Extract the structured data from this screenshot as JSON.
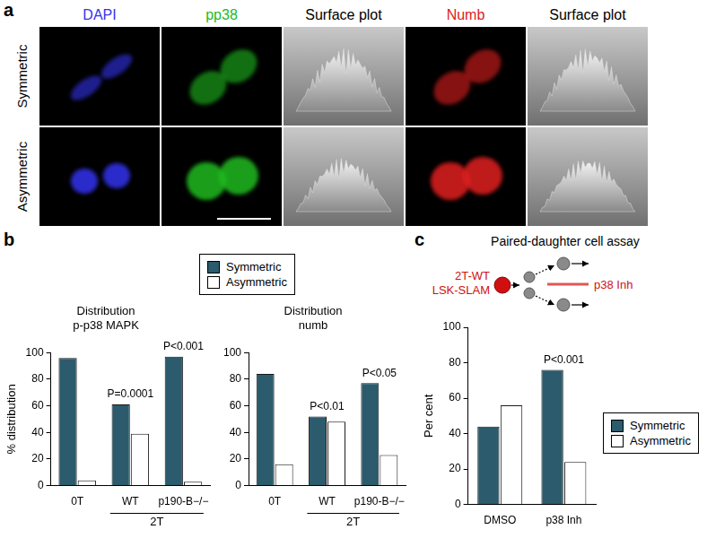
{
  "panel_labels": [
    "a",
    "b",
    "c"
  ],
  "micrographs": {
    "columns": [
      {
        "label": "DAPI",
        "color": "#3333ee"
      },
      {
        "label": "pp38",
        "color": "#22bb22"
      },
      {
        "label": "Surface plot",
        "color": "#000000"
      },
      {
        "label": "Numb",
        "color": "#e0201c"
      },
      {
        "label": "Surface plot",
        "color": "#000000"
      }
    ],
    "rows": [
      "Symmetric",
      "Asymmetric"
    ]
  },
  "assay_diagram": {
    "title": "Paired-daughter cell assay",
    "cell_label": [
      "2T-WT",
      "LSK-SLAM"
    ],
    "treatment_label": "p38 Inh"
  },
  "chart_data": [
    {
      "type": "bar",
      "title": [
        "Distribution",
        "p-p38 MAPK"
      ],
      "y_label": "% distribution",
      "categories": [
        "0T",
        "WT",
        "p190-B−/−"
      ],
      "category_groups": [
        {
          "label": "2T",
          "categories": [
            "WT",
            "p190-B−/−"
          ]
        }
      ],
      "series": [
        {
          "name": "Symmetric",
          "color": "#2b5b6c",
          "values": [
            96,
            61,
            97
          ]
        },
        {
          "name": "Asymmetric",
          "color": "#ffffff",
          "values": [
            4,
            39,
            3
          ]
        }
      ],
      "ylim": [
        0,
        100
      ],
      "yticks": [
        0,
        20,
        40,
        60,
        80,
        100
      ],
      "grid": false,
      "legend": "top",
      "annotations": [
        {
          "category": "WT",
          "text": "P=0.0001"
        },
        {
          "category": "p190-B−/−",
          "text": "P<0.001"
        }
      ]
    },
    {
      "type": "bar",
      "title": [
        "Distribution",
        "numb"
      ],
      "categories": [
        "0T",
        "WT",
        "p190-B−/−"
      ],
      "category_groups": [
        {
          "label": "2T",
          "categories": [
            "WT",
            "p190-B−/−"
          ]
        }
      ],
      "series": [
        {
          "name": "Symmetric",
          "color": "#2b5b6c",
          "values": [
            84,
            52,
            77
          ]
        },
        {
          "name": "Asymmetric",
          "color": "#ffffff",
          "values": [
            16,
            48,
            23
          ]
        }
      ],
      "ylim": [
        0,
        100
      ],
      "yticks": [
        0,
        20,
        40,
        60,
        80,
        100
      ],
      "grid": false,
      "annotations": [
        {
          "category": "WT",
          "text": "P<0.01"
        },
        {
          "category": "p190-B−/−",
          "text": "P<0.05"
        }
      ]
    },
    {
      "type": "bar",
      "y_label": "Per cent",
      "categories": [
        "DMSO",
        "p38 Inh"
      ],
      "series": [
        {
          "name": "Symmetric",
          "color": "#2b5b6c",
          "values": [
            44,
            76
          ]
        },
        {
          "name": "Asymmetric",
          "color": "#ffffff",
          "values": [
            56,
            24
          ]
        }
      ],
      "ylim": [
        0,
        100
      ],
      "yticks": [
        0,
        20,
        40,
        60,
        80,
        100
      ],
      "grid": false,
      "legend": "right",
      "annotations": [
        {
          "category": "p38 Inh",
          "text": "P<0.001"
        }
      ]
    }
  ]
}
